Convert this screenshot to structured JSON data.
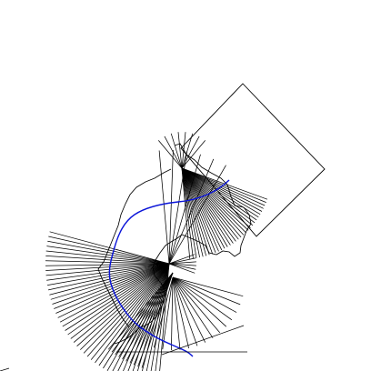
{
  "canvas": {
    "background": "#ffffff"
  },
  "colors": {
    "line": "#000000",
    "route": "#0a14d8"
  },
  "elements": {
    "fan_count_main": 45,
    "fan_count_top": 32,
    "fan_count_lower": 14,
    "has_rotated_rectangle": true,
    "has_blue_route": true,
    "has_outline_shape": true
  }
}
